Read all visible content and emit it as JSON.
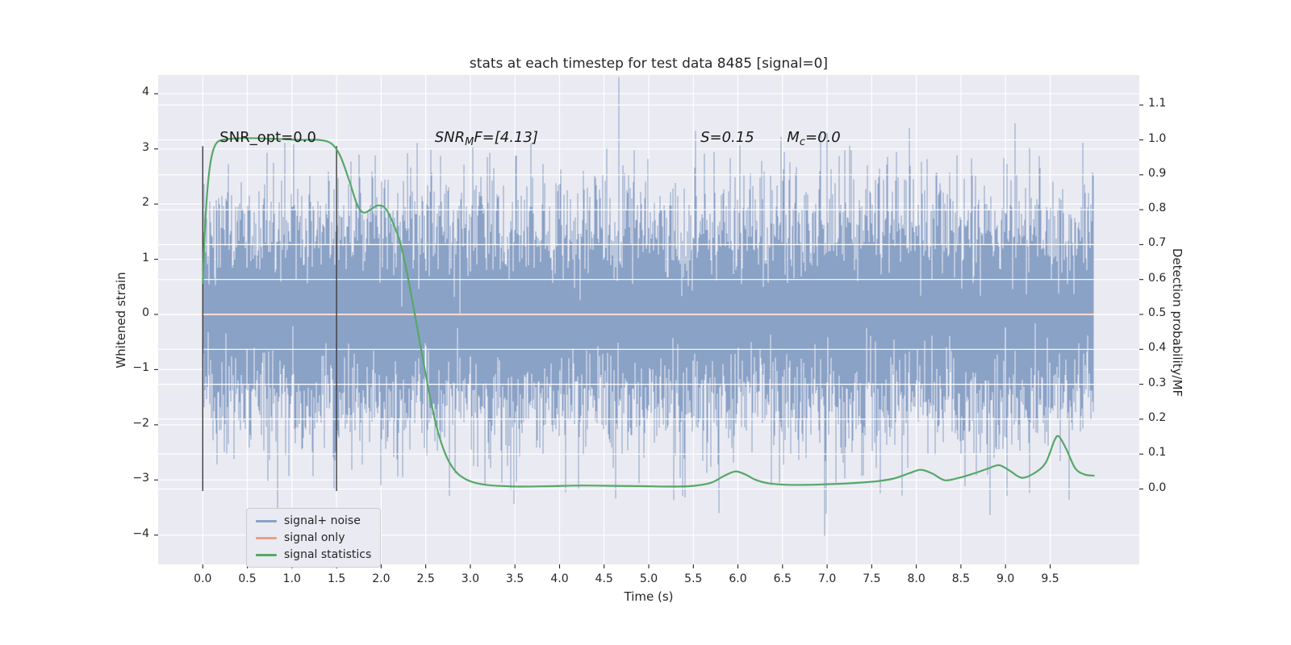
{
  "chart_data": {
    "type": "line",
    "title": "stats at each timestep for test data 8485 [signal=0]",
    "xlabel": "Time (s)",
    "ylabel_left": "Whitened strain",
    "ylabel_right": "Detection probability/MF",
    "xlim": [
      -0.5,
      10.5
    ],
    "ylim_left": [
      -4.53,
      4.34
    ],
    "ylim_right": [
      -0.216,
      1.186
    ],
    "grid": true,
    "x_ticks": {
      "values": [
        0,
        0.5,
        1,
        1.5,
        2,
        2.5,
        3,
        3.5,
        4,
        4.5,
        5,
        5.5,
        6,
        6.5,
        7,
        7.5,
        8,
        8.5,
        9,
        9.5
      ],
      "labels": [
        "0.0",
        "0.5",
        "1.0",
        "1.5",
        "2.0",
        "2.5",
        "3.0",
        "3.5",
        "4.0",
        "4.5",
        "5.0",
        "5.5",
        "6.0",
        "6.5",
        "7.0",
        "7.5",
        "8.0",
        "8.5",
        "9.0",
        "9.5"
      ]
    },
    "y_ticks_left": {
      "values": [
        -4,
        -3,
        -2,
        -1,
        0,
        1,
        2,
        3,
        4
      ],
      "labels": [
        "−4",
        "−3",
        "−2",
        "−1",
        "0",
        "1",
        "2",
        "3",
        "4"
      ]
    },
    "y_ticks_right": {
      "values": [
        0,
        0.1,
        0.2,
        0.3,
        0.4,
        0.5,
        0.6,
        0.7,
        0.8,
        0.9,
        1.0,
        1.1
      ],
      "labels": [
        "0.0",
        "0.1",
        "0.2",
        "0.3",
        "0.4",
        "0.5",
        "0.6",
        "0.7",
        "0.8",
        "0.9",
        "1.0",
        "1.1"
      ]
    },
    "colors": {
      "figure_bg": "#ffffff",
      "plot_bg": "#eaeaf2",
      "grid": "#ffffff",
      "noise": "#8ba2c7",
      "signal": "#e4a185",
      "stat": "#55a868",
      "vline": "#3d3d3d",
      "tick": "#262626",
      "legend_bg": "#eaeaf2",
      "legend_edge": "#cccccc"
    },
    "series": [
      {
        "name": "signal+ noise",
        "kind": "noise",
        "axis": "left",
        "color": "#8ba2c7",
        "x_start": 0.0,
        "x_end": 9.99,
        "sigma": 1.0,
        "samples_per_column": 12,
        "seed": 8485
      },
      {
        "name": "signal only",
        "kind": "constant",
        "axis": "left",
        "color": "#e4a185",
        "y": 0.0,
        "x_start": 0.0,
        "x_end": 9.99
      },
      {
        "name": "signal statistics",
        "kind": "curve",
        "axis": "right",
        "color": "#55a868",
        "points": [
          [
            0.0,
            0.59
          ],
          [
            0.02,
            0.72
          ],
          [
            0.05,
            0.85
          ],
          [
            0.09,
            0.94
          ],
          [
            0.14,
            0.985
          ],
          [
            0.22,
            1.0
          ],
          [
            0.45,
            1.005
          ],
          [
            0.8,
            1.003
          ],
          [
            1.1,
            1.0
          ],
          [
            1.3,
            1.0
          ],
          [
            1.44,
            0.99
          ],
          [
            1.54,
            0.955
          ],
          [
            1.64,
            0.885
          ],
          [
            1.73,
            0.815
          ],
          [
            1.8,
            0.792
          ],
          [
            1.88,
            0.8
          ],
          [
            1.96,
            0.812
          ],
          [
            2.04,
            0.806
          ],
          [
            2.12,
            0.77
          ],
          [
            2.22,
            0.7
          ],
          [
            2.32,
            0.58
          ],
          [
            2.42,
            0.44
          ],
          [
            2.52,
            0.3
          ],
          [
            2.62,
            0.18
          ],
          [
            2.72,
            0.1
          ],
          [
            2.82,
            0.055
          ],
          [
            2.92,
            0.032
          ],
          [
            3.05,
            0.018
          ],
          [
            3.25,
            0.01
          ],
          [
            3.55,
            0.007
          ],
          [
            3.9,
            0.008
          ],
          [
            4.25,
            0.01
          ],
          [
            4.6,
            0.009
          ],
          [
            4.95,
            0.008
          ],
          [
            5.25,
            0.007
          ],
          [
            5.5,
            0.009
          ],
          [
            5.7,
            0.018
          ],
          [
            5.85,
            0.038
          ],
          [
            5.97,
            0.05
          ],
          [
            6.08,
            0.042
          ],
          [
            6.2,
            0.026
          ],
          [
            6.35,
            0.016
          ],
          [
            6.55,
            0.012
          ],
          [
            6.8,
            0.012
          ],
          [
            7.05,
            0.014
          ],
          [
            7.3,
            0.017
          ],
          [
            7.55,
            0.022
          ],
          [
            7.75,
            0.03
          ],
          [
            7.92,
            0.045
          ],
          [
            8.05,
            0.055
          ],
          [
            8.18,
            0.044
          ],
          [
            8.32,
            0.025
          ],
          [
            8.48,
            0.032
          ],
          [
            8.65,
            0.045
          ],
          [
            8.82,
            0.06
          ],
          [
            8.93,
            0.068
          ],
          [
            9.05,
            0.052
          ],
          [
            9.18,
            0.032
          ],
          [
            9.32,
            0.045
          ],
          [
            9.45,
            0.075
          ],
          [
            9.55,
            0.14
          ],
          [
            9.6,
            0.15
          ],
          [
            9.68,
            0.115
          ],
          [
            9.78,
            0.06
          ],
          [
            9.88,
            0.042
          ],
          [
            9.99,
            0.038
          ]
        ]
      }
    ],
    "vlines": [
      {
        "x": 0.0,
        "y0": -3.2,
        "y1": 3.05,
        "color": "#3d3d3d"
      },
      {
        "x": 1.5,
        "y0": -3.2,
        "y1": 3.05,
        "color": "#3d3d3d"
      }
    ],
    "annotations": [
      {
        "pre": "SNR_opt=0.0",
        "sub": "",
        "post": "",
        "italic": false,
        "x": 0.19,
        "y": 3.12
      },
      {
        "pre": "SNR",
        "sub": "M",
        "post": "F=[4.13]",
        "italic": true,
        "x": 2.6,
        "y": 3.12
      },
      {
        "pre": "S",
        "sub": "",
        "post": "=0.15",
        "italic": true,
        "x": 5.58,
        "y": 3.12
      },
      {
        "pre": "M",
        "sub": "c",
        "post": "=0.0",
        "italic": true,
        "x": 6.55,
        "y": 3.12
      }
    ],
    "legend": {
      "position": "lower left",
      "entries": [
        {
          "label": "signal+ noise",
          "color": "#8ba2c7"
        },
        {
          "label": "signal only",
          "color": "#e4a185"
        },
        {
          "label": "signal statistics",
          "color": "#55a868"
        }
      ]
    }
  }
}
